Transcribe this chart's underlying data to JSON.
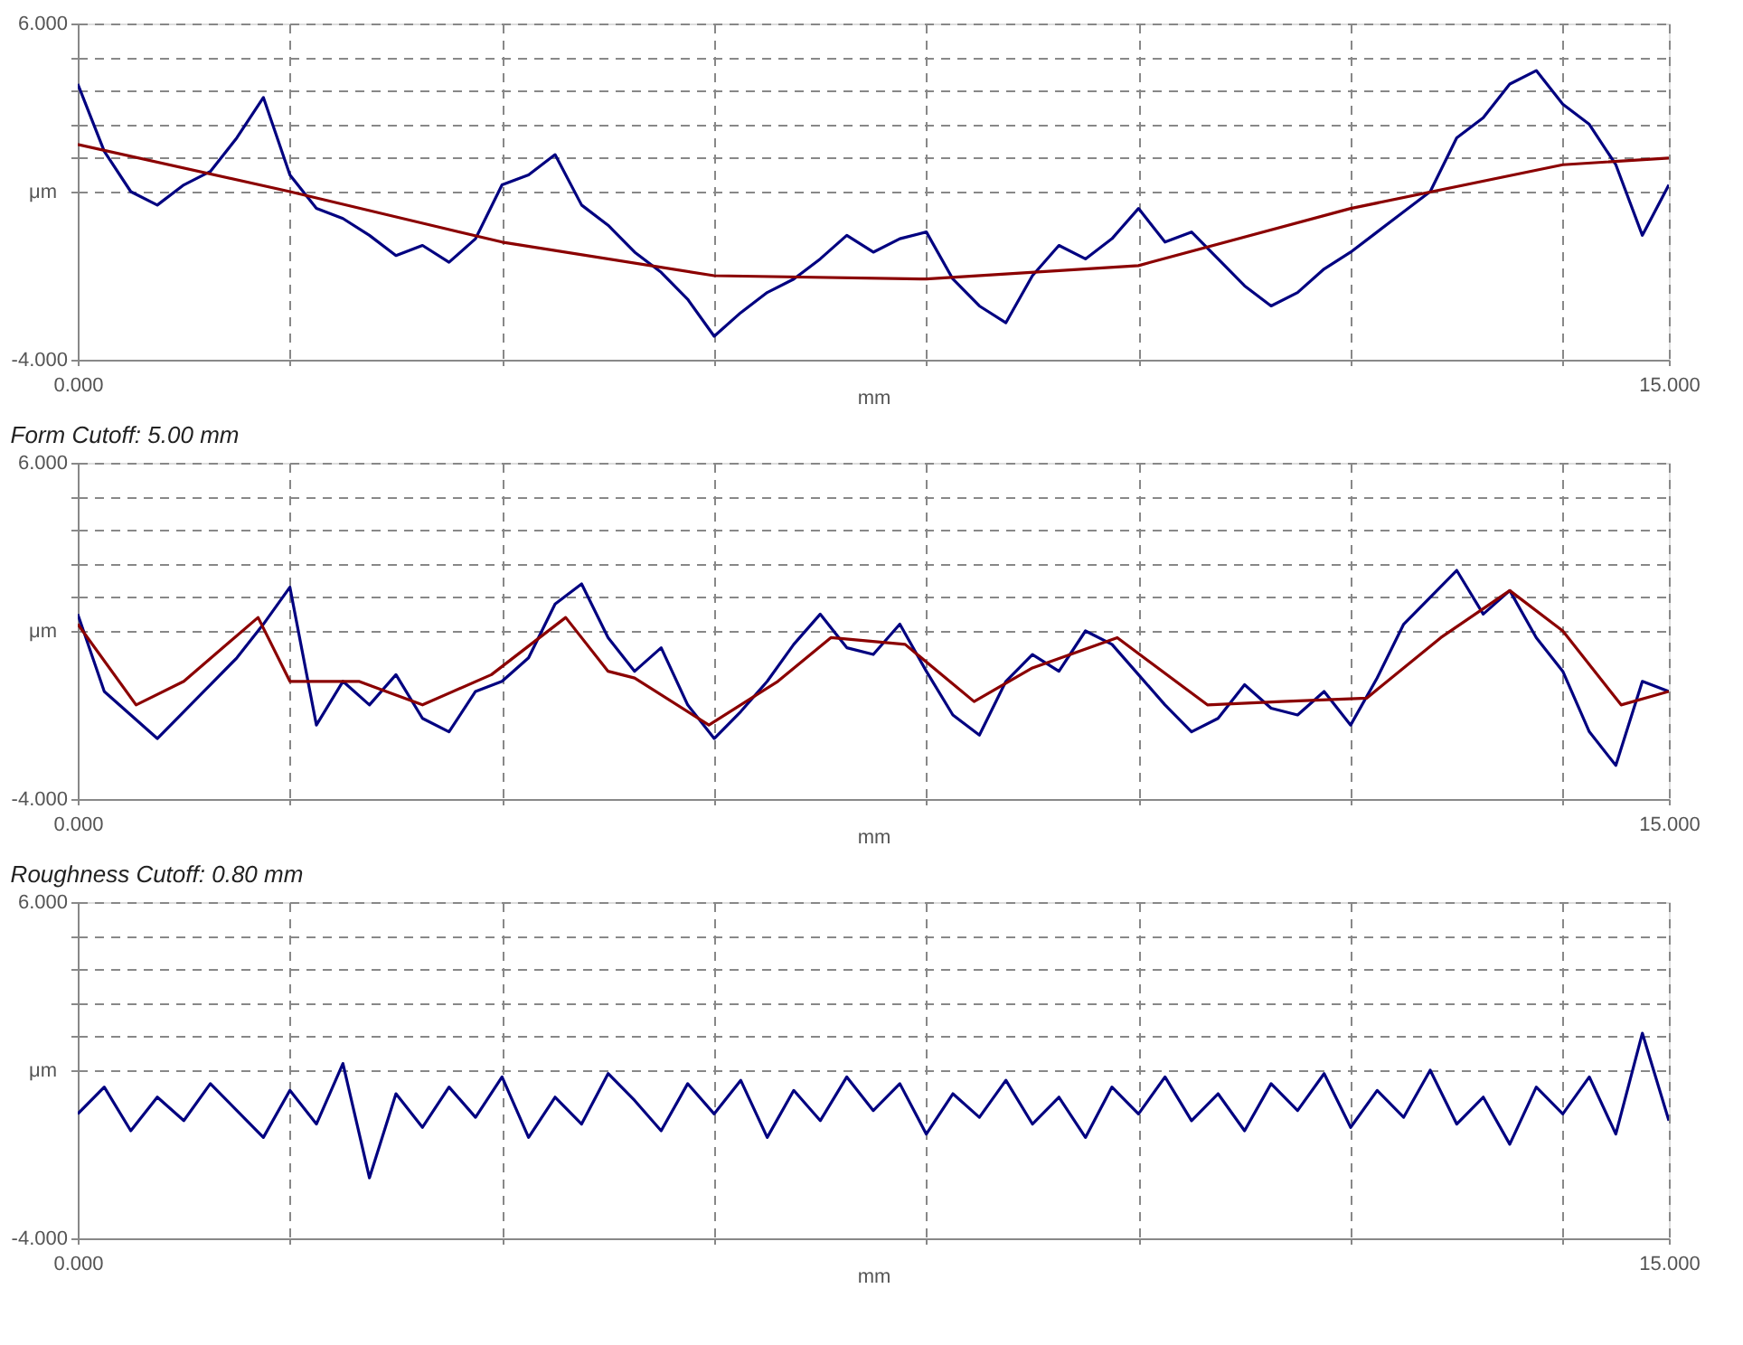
{
  "chart_data": [
    {
      "type": "line",
      "xlabel": "mm",
      "ylabel": "μm",
      "xlim": [
        0,
        15
      ],
      "ylim": [
        -4,
        6
      ],
      "xticks": [
        {
          "value": 0,
          "label": "0.000"
        },
        {
          "value": 2,
          "label": null
        },
        {
          "value": 4,
          "label": null
        },
        {
          "value": 6,
          "label": null
        },
        {
          "value": 8,
          "label": null
        },
        {
          "value": 10,
          "label": null
        },
        {
          "value": 12,
          "label": null
        },
        {
          "value": 14,
          "label": null
        },
        {
          "value": 15,
          "label": "15.000"
        }
      ],
      "yticks": [
        {
          "value": -4,
          "label": "-4.000"
        },
        {
          "value": 1,
          "label": null
        },
        {
          "value": 2,
          "label": null
        },
        {
          "value": 3,
          "label": null
        },
        {
          "value": 4,
          "label": null
        },
        {
          "value": 5,
          "label": null
        },
        {
          "value": 6,
          "label": "6.000"
        }
      ],
      "grid": true,
      "line_style": "solid",
      "marker": "none",
      "x": [
        0,
        0.25,
        0.5,
        0.75,
        1,
        1.25,
        1.5,
        1.75,
        2,
        2.25,
        2.5,
        2.75,
        3,
        3.25,
        3.5,
        3.75,
        4,
        4.25,
        4.5,
        4.75,
        5,
        5.25,
        5.5,
        5.75,
        6,
        6.25,
        6.5,
        6.75,
        7,
        7.25,
        7.5,
        7.75,
        8,
        8.25,
        8.5,
        8.75,
        9,
        9.25,
        9.5,
        9.75,
        10,
        10.25,
        10.5,
        10.75,
        11,
        11.25,
        11.5,
        11.75,
        12,
        12.25,
        12.5,
        12.75,
        13,
        13.25,
        13.5,
        13.75,
        14,
        14.25,
        14.5,
        14.75,
        15
      ],
      "series": [
        {
          "type": "line",
          "color": "#000080",
          "values": [
            4.2,
            2.2,
            1.0,
            0.6,
            1.2,
            1.6,
            2.6,
            3.8,
            1.5,
            0.5,
            0.2,
            -0.3,
            -0.9,
            -0.6,
            -1.1,
            -0.4,
            1.2,
            1.5,
            2.1,
            0.6,
            0.0,
            -0.8,
            -1.4,
            -2.2,
            -3.3,
            -2.6,
            -2.0,
            -1.6,
            -1.0,
            -0.3,
            -0.8,
            -0.4,
            -0.2,
            -1.6,
            -2.4,
            -2.9,
            -1.5,
            -0.6,
            -1.0,
            -0.4,
            0.5,
            -0.5,
            -0.2,
            -1.0,
            -1.8,
            -2.4,
            -2.0,
            -1.3,
            -0.8,
            -0.2,
            0.4,
            1.0,
            2.6,
            3.2,
            4.2,
            4.6,
            3.6,
            3.0,
            1.8,
            -0.3,
            1.2
          ]
        },
        {
          "type": "line",
          "color": "#8b0000",
          "x": [
            0,
            2,
            4,
            6,
            8,
            10,
            12,
            14,
            15
          ],
          "values": [
            2.4,
            1,
            -0.5,
            -1.5,
            -1.6,
            -1.2,
            0.5,
            1.8,
            2
          ]
        }
      ]
    },
    {
      "type": "line",
      "title": "Form Cutoff: 5.00 mm",
      "xlabel": "mm",
      "ylabel": "μm",
      "xlim": [
        0,
        15
      ],
      "ylim": [
        -4,
        6
      ],
      "xticks": [
        {
          "value": 0,
          "label": "0.000"
        },
        {
          "value": 2,
          "label": null
        },
        {
          "value": 4,
          "label": null
        },
        {
          "value": 6,
          "label": null
        },
        {
          "value": 8,
          "label": null
        },
        {
          "value": 10,
          "label": null
        },
        {
          "value": 12,
          "label": null
        },
        {
          "value": 14,
          "label": null
        },
        {
          "value": 15,
          "label": "15.000"
        }
      ],
      "yticks": [
        {
          "value": -4,
          "label": "-4.000"
        },
        {
          "value": 1,
          "label": null
        },
        {
          "value": 2,
          "label": null
        },
        {
          "value": 3,
          "label": null
        },
        {
          "value": 4,
          "label": null
        },
        {
          "value": 5,
          "label": null
        },
        {
          "value": 6,
          "label": "6.000"
        }
      ],
      "grid": true,
      "line_style": "solid",
      "marker": "none",
      "x": [
        0,
        0.25,
        0.5,
        0.75,
        1,
        1.25,
        1.5,
        1.75,
        2,
        2.25,
        2.5,
        2.75,
        3,
        3.25,
        3.5,
        3.75,
        4,
        4.25,
        4.5,
        4.75,
        5,
        5.25,
        5.5,
        5.75,
        6,
        6.25,
        6.5,
        6.75,
        7,
        7.25,
        7.5,
        7.75,
        8,
        8.25,
        8.5,
        8.75,
        9,
        9.25,
        9.5,
        9.75,
        10,
        10.25,
        10.5,
        10.75,
        11,
        11.25,
        11.5,
        11.75,
        12,
        12.25,
        12.5,
        12.75,
        13,
        13.25,
        13.5,
        13.75,
        14,
        14.25,
        14.5,
        14.75,
        15
      ],
      "series": [
        {
          "type": "line",
          "color": "#000080",
          "values": [
            1.5,
            -0.8,
            -1.5,
            -2.2,
            -1.4,
            -0.6,
            0.2,
            1.2,
            2.3,
            -1.8,
            -0.5,
            -1.2,
            -0.3,
            -1.6,
            -2.0,
            -0.8,
            -0.5,
            0.2,
            1.8,
            2.4,
            0.8,
            -0.2,
            0.5,
            -1.2,
            -2.2,
            -1.4,
            -0.5,
            0.6,
            1.5,
            0.5,
            0.3,
            1.2,
            -0.2,
            -1.5,
            -2.1,
            -0.5,
            0.3,
            -0.2,
            1.0,
            0.6,
            -0.3,
            -1.2,
            -2.0,
            -1.6,
            -0.6,
            -1.3,
            -1.5,
            -0.8,
            -1.8,
            -0.4,
            1.2,
            2.0,
            2.8,
            1.5,
            2.2,
            0.8,
            -0.2,
            -2.0,
            -3.0,
            -0.5,
            -0.8
          ]
        },
        {
          "type": "line",
          "color": "#8b0000",
          "x": [
            0,
            0.55,
            1.0,
            1.7,
            2.0,
            2.65,
            3.25,
            3.9,
            4.6,
            5.0,
            5.25,
            5.95,
            6.6,
            7.1,
            7.8,
            8.45,
            9.0,
            9.8,
            10.65,
            11.35,
            12.15,
            12.85,
            13.5,
            14.0,
            14.55,
            15
          ],
          "values": [
            1.2,
            -1.2,
            -0.5,
            1.4,
            -0.5,
            -0.5,
            -1.2,
            -0.3,
            1.4,
            -0.2,
            -0.4,
            -1.8,
            -0.5,
            0.8,
            0.6,
            -1.1,
            -0.1,
            0.8,
            -1.2,
            -1.1,
            -1,
            0.8,
            2.2,
            1,
            -1.2,
            -0.8
          ]
        }
      ]
    },
    {
      "type": "line",
      "title": "Roughness Cutoff: 0.80 mm",
      "xlabel": "mm",
      "ylabel": "μm",
      "xlim": [
        0,
        15
      ],
      "ylim": [
        -4,
        6
      ],
      "xticks": [
        {
          "value": 0,
          "label": "0.000"
        },
        {
          "value": 2,
          "label": null
        },
        {
          "value": 4,
          "label": null
        },
        {
          "value": 6,
          "label": null
        },
        {
          "value": 8,
          "label": null
        },
        {
          "value": 10,
          "label": null
        },
        {
          "value": 12,
          "label": null
        },
        {
          "value": 14,
          "label": null
        },
        {
          "value": 15,
          "label": "15.000"
        }
      ],
      "yticks": [
        {
          "value": -4,
          "label": "-4.000"
        },
        {
          "value": 1,
          "label": null
        },
        {
          "value": 2,
          "label": null
        },
        {
          "value": 3,
          "label": null
        },
        {
          "value": 4,
          "label": null
        },
        {
          "value": 5,
          "label": null
        },
        {
          "value": 6,
          "label": "6.000"
        }
      ],
      "grid": true,
      "line_style": "solid",
      "marker": "none",
      "x": [
        0,
        0.25,
        0.5,
        0.75,
        1,
        1.25,
        1.5,
        1.75,
        2,
        2.25,
        2.5,
        2.75,
        3,
        3.25,
        3.5,
        3.75,
        4,
        4.25,
        4.5,
        4.75,
        5,
        5.25,
        5.5,
        5.75,
        6,
        6.25,
        6.5,
        6.75,
        7,
        7.25,
        7.5,
        7.75,
        8,
        8.25,
        8.5,
        8.75,
        9,
        9.25,
        9.5,
        9.75,
        10,
        10.25,
        10.5,
        10.75,
        11,
        11.25,
        11.5,
        11.75,
        12,
        12.25,
        12.5,
        12.75,
        13,
        13.25,
        13.5,
        13.75,
        14,
        14.25,
        14.5,
        14.75,
        15
      ],
      "series": [
        {
          "type": "line",
          "color": "#000080",
          "values": [
            -0.3,
            0.5,
            -0.8,
            0.2,
            -0.5,
            0.6,
            -0.2,
            -1.0,
            0.4,
            -0.6,
            1.2,
            -2.2,
            0.3,
            -0.7,
            0.5,
            -0.4,
            0.8,
            -1.0,
            0.2,
            -0.6,
            0.9,
            0.1,
            -0.8,
            0.6,
            -0.3,
            0.7,
            -1.0,
            0.4,
            -0.5,
            0.8,
            -0.2,
            0.6,
            -0.9,
            0.3,
            -0.4,
            0.7,
            -0.6,
            0.2,
            -1.0,
            0.5,
            -0.3,
            0.8,
            -0.5,
            0.3,
            -0.8,
            0.6,
            -0.2,
            0.9,
            -0.7,
            0.4,
            -0.4,
            1.0,
            -0.6,
            0.2,
            -1.2,
            0.5,
            -0.3,
            0.8,
            -0.9,
            2.1,
            -0.5
          ]
        }
      ]
    }
  ]
}
